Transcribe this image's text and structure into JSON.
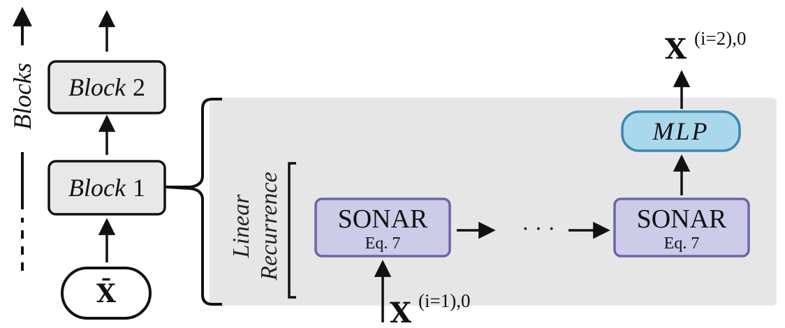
{
  "axis": {
    "label": "Blocks"
  },
  "blocks": [
    {
      "italic": "Block",
      "num": "2"
    },
    {
      "italic": "Block",
      "num": "1"
    }
  ],
  "input": {
    "label": "X̄"
  },
  "recurrence": {
    "label_line1": "Linear",
    "label_line2": "Recurrence"
  },
  "sonar_nodes": [
    {
      "title": "SONAR",
      "sub": "Eq. 7"
    },
    {
      "title": "SONAR",
      "sub": "Eq. 7"
    }
  ],
  "ellipsis": "· · ·",
  "mlp": {
    "label": "MLP"
  },
  "input_var": {
    "base": "X",
    "sup": "(i=1),0"
  },
  "output_var": {
    "base": "X",
    "sup": "(i=2),0"
  },
  "colors": {
    "block_fill": "#e8e8e8",
    "panel_fill": "#e6e6e6",
    "sonar_fill": "#cccbe8",
    "sonar_stroke": "#6f64a8",
    "mlp_fill": "#a9d8ec",
    "mlp_stroke": "#3a88b2",
    "stroke": "#111111"
  }
}
